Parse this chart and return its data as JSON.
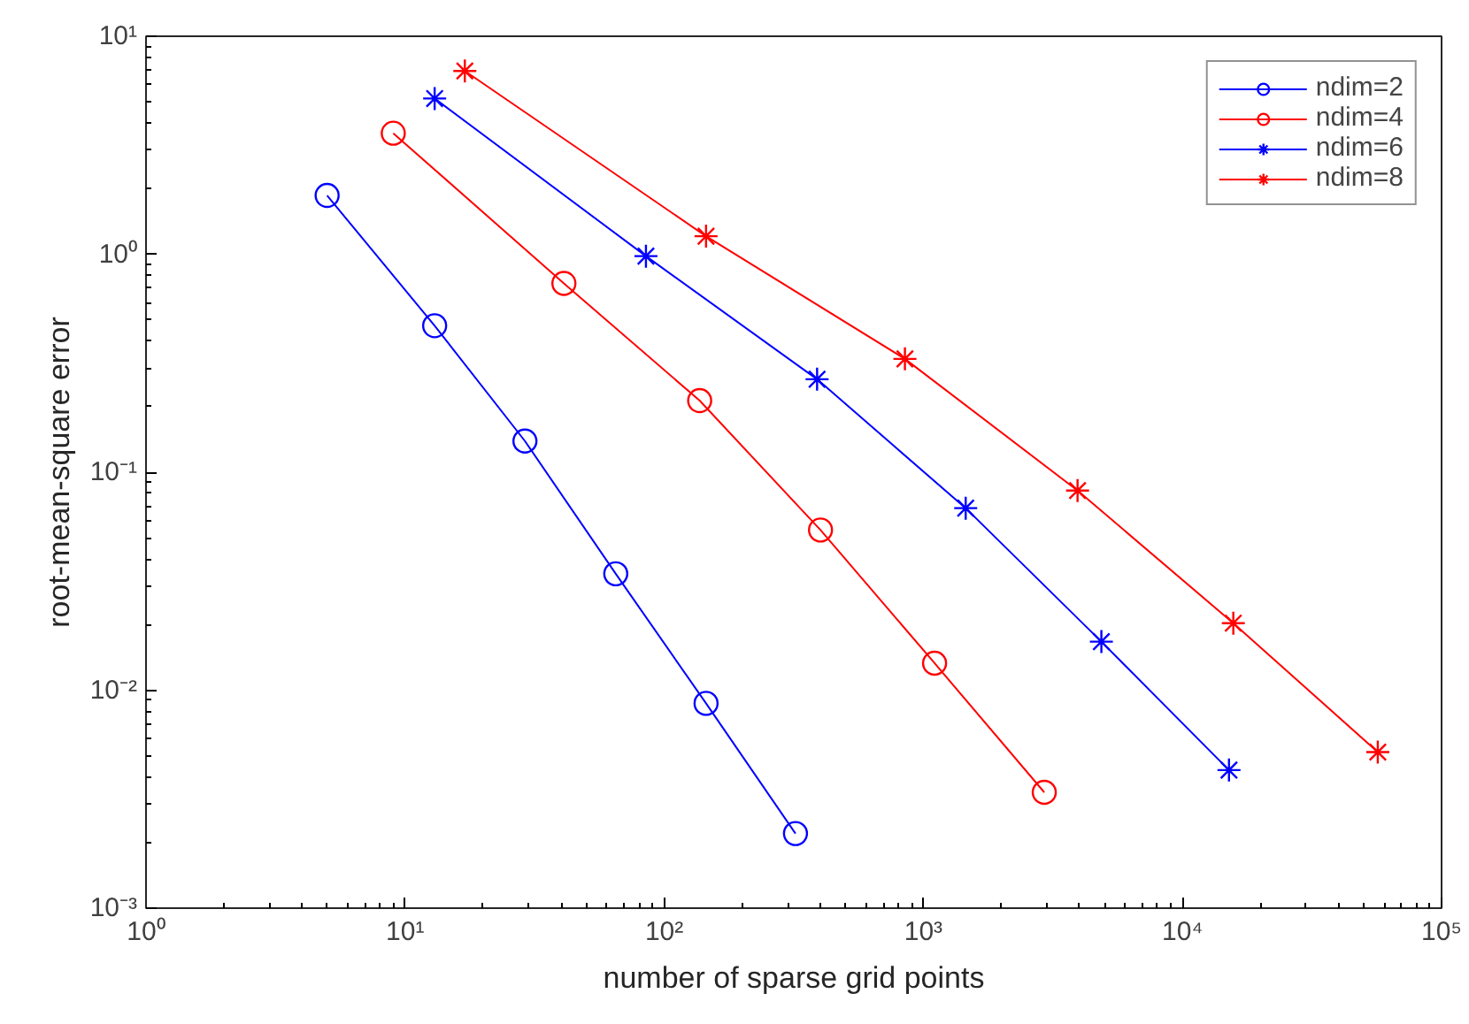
{
  "chart_data": {
    "type": "line",
    "xlabel": "number of sparse grid points",
    "ylabel": "root-mean-square error",
    "log": "xy",
    "grid": false,
    "legend": "top right",
    "line_style": "solid",
    "xlim": [
      1,
      100000
    ],
    "ylim": [
      0.001,
      10
    ],
    "xticks": [
      {
        "value": 1,
        "label": "10⁰"
      },
      {
        "value": 10,
        "label": "10¹"
      },
      {
        "value": 100,
        "label": "10²"
      },
      {
        "value": 1000,
        "label": "10³"
      },
      {
        "value": 10000,
        "label": "10⁴"
      },
      {
        "value": 100000,
        "label": "10⁵"
      }
    ],
    "yticks": [
      {
        "value": 0.001,
        "label": "10⁻³"
      },
      {
        "value": 0.01,
        "label": "10⁻²"
      },
      {
        "value": 0.1,
        "label": "10⁻¹"
      },
      {
        "value": 1,
        "label": "10⁰"
      },
      {
        "value": 10,
        "label": "10¹"
      }
    ],
    "series": [
      {
        "name": "ndim=2",
        "color": "#0000ff",
        "marker": "circle",
        "x": [
          5,
          13,
          29,
          65,
          145,
          321
        ],
        "values": [
          1.86,
          0.47,
          0.139,
          0.0342,
          0.0087,
          0.0022
        ]
      },
      {
        "name": "ndim=4",
        "color": "#ff0000",
        "marker": "circle",
        "x": [
          9,
          41,
          137,
          401,
          1105,
          2929
        ],
        "values": [
          3.59,
          0.735,
          0.213,
          0.0543,
          0.0133,
          0.0034
        ]
      },
      {
        "name": "ndim=6",
        "color": "#0000ff",
        "marker": "cross",
        "x": [
          13,
          85,
          389,
          1457,
          4865,
          15121
        ],
        "values": [
          5.18,
          0.98,
          0.267,
          0.0684,
          0.0167,
          0.0043
        ]
      },
      {
        "name": "ndim=8",
        "color": "#ff0000",
        "marker": "cross",
        "x": [
          17,
          145,
          849,
          3937,
          15713,
          56737
        ],
        "values": [
          6.93,
          1.21,
          0.331,
          0.0824,
          0.0203,
          0.0052
        ]
      }
    ]
  }
}
